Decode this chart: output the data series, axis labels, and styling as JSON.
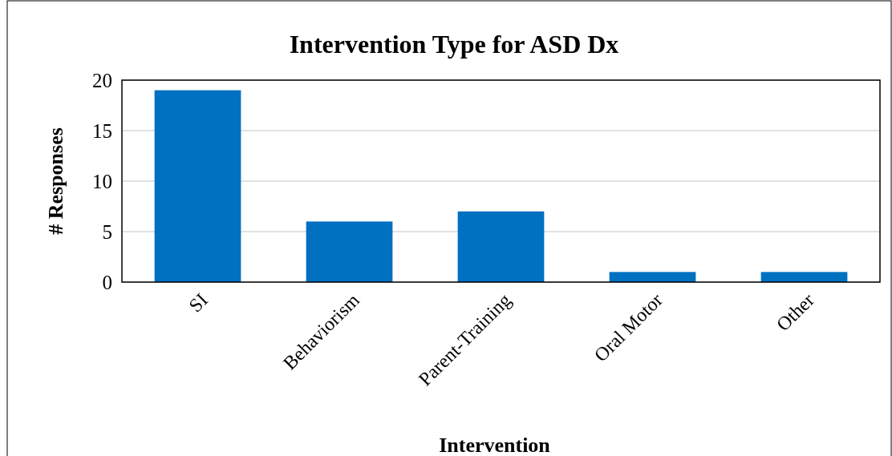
{
  "chart_data": {
    "type": "bar",
    "title": "Intervention Type for ASD Dx",
    "xlabel": "Intervention",
    "ylabel": "# Responses",
    "categories": [
      "SI",
      "Behaviorism",
      "Parent-Training",
      "Oral Motor",
      "Other"
    ],
    "values": [
      19,
      6,
      7,
      1,
      1
    ],
    "color": "#0070c0",
    "ylim": [
      0,
      20
    ],
    "yticks": [
      0,
      5,
      10,
      15,
      20
    ],
    "grid": "y"
  }
}
